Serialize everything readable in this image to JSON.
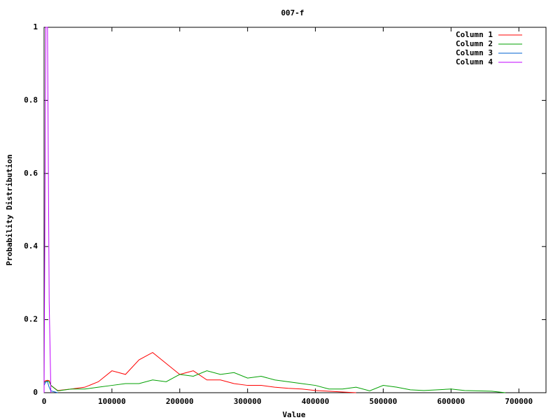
{
  "chart_data": {
    "type": "line",
    "title": "007-f",
    "x_label": "Value",
    "y_label": "Probability Distribution",
    "x": [
      0,
      2500,
      5000,
      7500,
      10000,
      20000,
      40000,
      60000,
      80000,
      100000,
      120000,
      140000,
      160000,
      180000,
      200000,
      220000,
      240000,
      260000,
      280000,
      300000,
      320000,
      340000,
      360000,
      380000,
      400000,
      420000,
      440000,
      460000,
      480000,
      500000,
      520000,
      540000,
      560000,
      580000,
      600000,
      620000,
      640000,
      660000,
      680000
    ],
    "series": [
      {
        "name": "Column 1",
        "color": "#ff0000",
        "values": [
          0.03,
          0.033,
          0.034,
          0.033,
          0.02,
          0.006,
          0.01,
          0.015,
          0.03,
          0.06,
          0.05,
          0.09,
          0.11,
          0.08,
          0.05,
          0.06,
          0.035,
          0.035,
          0.025,
          0.02,
          0.02,
          0.015,
          0.012,
          0.01,
          0.006,
          0.004,
          0.002,
          0,
          null,
          null,
          null,
          null,
          null,
          null,
          null,
          null,
          null,
          null,
          null
        ]
      },
      {
        "name": "Column 2",
        "color": "#00a000",
        "values": [
          0.028,
          0.03,
          0.032,
          0.03,
          0.02,
          0.005,
          0.01,
          0.01,
          0.015,
          0.02,
          0.025,
          0.025,
          0.035,
          0.03,
          0.05,
          0.045,
          0.06,
          0.05,
          0.055,
          0.04,
          0.045,
          0.035,
          0.03,
          0.025,
          0.02,
          0.01,
          0.01,
          0.015,
          0.005,
          0.02,
          0.015,
          0.008,
          0.006,
          0.008,
          0.01,
          0.006,
          0.005,
          0.004,
          0
        ]
      },
      {
        "name": "Column 3",
        "color": "#0060d0",
        "values": [
          0.02,
          0.03,
          0.03,
          0.015,
          0.005,
          0,
          null,
          null,
          null,
          null,
          null,
          null,
          null,
          null,
          null,
          null,
          null,
          null,
          null,
          null,
          null,
          null,
          null,
          null,
          null,
          null,
          null,
          null,
          null,
          null,
          null,
          null,
          null,
          null,
          null,
          null,
          null,
          null,
          null
        ]
      },
      {
        "name": "Column 4",
        "color": "#c000ff",
        "values": [
          0,
          1,
          1,
          0.25,
          0,
          null,
          null,
          null,
          null,
          null,
          null,
          null,
          null,
          null,
          null,
          null,
          null,
          null,
          null,
          null,
          null,
          null,
          null,
          null,
          null,
          null,
          null,
          null,
          null,
          null,
          null,
          null,
          null,
          null,
          null,
          null,
          null,
          null,
          null
        ]
      }
    ],
    "xlim": [
      0,
      740000
    ],
    "xticks": [
      0,
      100000,
      200000,
      300000,
      400000,
      500000,
      600000,
      700000
    ],
    "ylim": [
      0,
      1
    ],
    "yticks": [
      0,
      0.2,
      0.4,
      0.6,
      0.8,
      1
    ],
    "legend": "top-right"
  }
}
